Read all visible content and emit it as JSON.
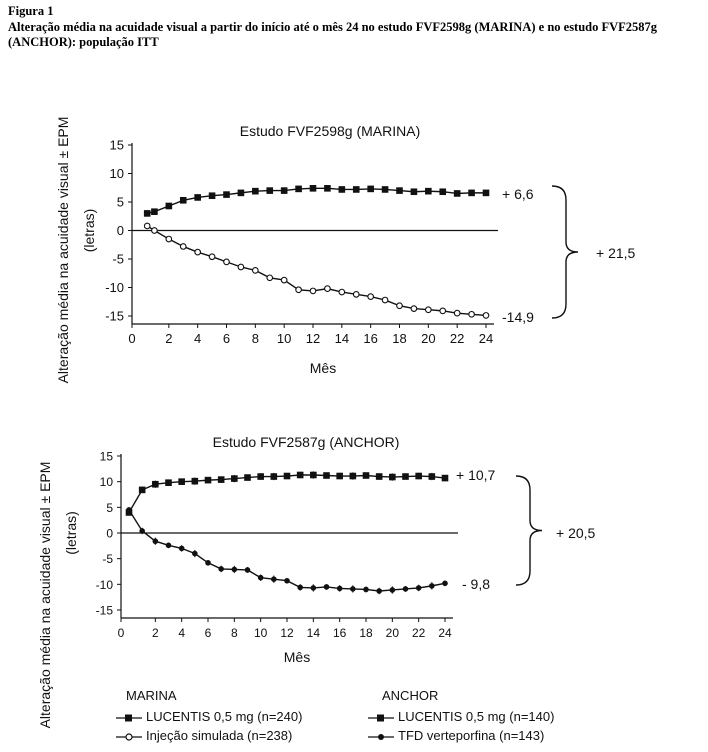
{
  "figure": {
    "label": "Figura 1",
    "caption": "Alteração média na acuidade visual a partir do início até o mês 24 no estudo FVF2598g (MARINA) e no estudo FVF2587g (ANCHOR): população ITT"
  },
  "chart_data": [
    {
      "type": "line",
      "title": "Estudo FVF2598g (MARINA)",
      "xlabel": "Mês",
      "ylabel": "Alteração média na acuidade visual ± EPM (letras)",
      "xlim": [
        0,
        24
      ],
      "ylim": [
        -15,
        15
      ],
      "xticks": [
        "0",
        "2",
        "4",
        "6",
        "8",
        "10",
        "12",
        "14",
        "16",
        "18",
        "20",
        "22",
        "24"
      ],
      "yticks": [
        "15",
        "10",
        "5",
        "0",
        "-5",
        "-10",
        "-15"
      ],
      "grid": false,
      "series": [
        {
          "name": "LUCENTIS 0,5 mg (n=240)",
          "marker": "filled-square",
          "x": [
            0.5,
            1,
            2,
            3,
            4,
            5,
            6,
            7,
            8,
            9,
            10,
            11,
            12,
            13,
            14,
            15,
            16,
            17,
            18,
            19,
            20,
            21,
            22,
            23,
            24
          ],
          "y": [
            3.0,
            3.3,
            4.3,
            5.3,
            5.8,
            6.1,
            6.3,
            6.6,
            6.9,
            7.0,
            7.0,
            7.3,
            7.4,
            7.4,
            7.2,
            7.2,
            7.3,
            7.2,
            7.0,
            6.8,
            6.9,
            6.8,
            6.5,
            6.6,
            6.6
          ]
        },
        {
          "name": "Injeção simulada (n=238)",
          "marker": "open-circle",
          "x": [
            0.5,
            1,
            2,
            3,
            4,
            5,
            6,
            7,
            8,
            9,
            10,
            11,
            12,
            13,
            14,
            15,
            16,
            17,
            18,
            19,
            20,
            21,
            22,
            23,
            24
          ],
          "y": [
            0.8,
            0.0,
            -1.5,
            -2.8,
            -3.8,
            -4.6,
            -5.5,
            -6.4,
            -7.0,
            -8.3,
            -8.7,
            -10.4,
            -10.6,
            -10.2,
            -10.8,
            -11.2,
            -11.6,
            -12.2,
            -13.2,
            -13.7,
            -13.9,
            -14.1,
            -14.5,
            -14.7,
            -14.9
          ]
        }
      ],
      "annotations": [
        "+ 6,6",
        "-14,9",
        "+ 21,5"
      ]
    },
    {
      "type": "line",
      "title": "Estudo FVF2587g (ANCHOR)",
      "xlabel": "Mês",
      "ylabel": "Alteração média na acuidade visual ± EPM (letras)",
      "xlim": [
        0,
        24
      ],
      "ylim": [
        -15,
        15
      ],
      "xticks": [
        "0",
        "2",
        "4",
        "6",
        "8",
        "10",
        "12",
        "14",
        "16",
        "18",
        "20",
        "22",
        "24"
      ],
      "yticks": [
        "15",
        "10",
        "5",
        "0",
        "-5",
        "-10",
        "-15"
      ],
      "grid": false,
      "series": [
        {
          "name": "LUCENTIS 0,5 mg (n=140)",
          "marker": "filled-square",
          "x": [
            0,
            1,
            2,
            3,
            4,
            5,
            6,
            7,
            8,
            9,
            10,
            11,
            12,
            13,
            14,
            15,
            16,
            17,
            18,
            19,
            20,
            21,
            22,
            23,
            24
          ],
          "y": [
            4.0,
            8.4,
            9.5,
            9.8,
            10.0,
            10.1,
            10.3,
            10.4,
            10.6,
            10.8,
            11.0,
            11.0,
            11.1,
            11.3,
            11.3,
            11.2,
            11.1,
            11.1,
            11.2,
            11.0,
            10.9,
            11.0,
            11.1,
            11.0,
            10.7
          ]
        },
        {
          "name": "TFD verteporfina (n=143)",
          "marker": "filled-circle",
          "x": [
            0,
            1,
            2,
            3,
            4,
            5,
            6,
            7,
            8,
            9,
            10,
            11,
            12,
            13,
            14,
            15,
            16,
            17,
            18,
            19,
            20,
            21,
            22,
            23,
            24
          ],
          "y": [
            4.5,
            0.4,
            -1.6,
            -2.4,
            -3.0,
            -4.0,
            -5.8,
            -7.0,
            -7.1,
            -7.2,
            -8.7,
            -9.0,
            -9.3,
            -10.6,
            -10.7,
            -10.5,
            -10.8,
            -10.9,
            -11.0,
            -11.3,
            -11.1,
            -10.9,
            -10.7,
            -10.3,
            -9.8
          ]
        }
      ],
      "annotations": [
        "+ 10,7",
        "- 9,8",
        "+ 20,5"
      ]
    }
  ],
  "legend": {
    "marina_heading": "MARINA",
    "anchor_heading": "ANCHOR",
    "marina_lucentis": "LUCENTIS 0,5 mg (n=240)",
    "marina_sham": "Injeção simulada (n=238)",
    "anchor_lucentis": "LUCENTIS 0,5 mg (n=140)",
    "anchor_pdt": "TFD verteporfina (n=143)"
  }
}
